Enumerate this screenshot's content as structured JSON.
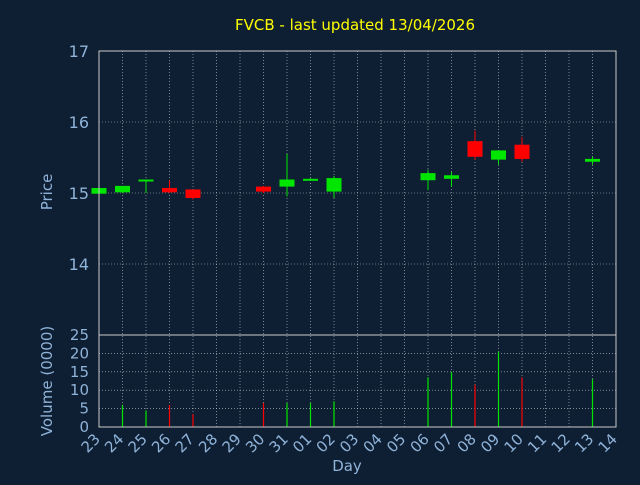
{
  "chart_data": {
    "type": "candlestick",
    "title": "FVCB - last updated 13/04/2026",
    "xlabel": "Day",
    "price_panel": {
      "ylabel": "Price",
      "ylim": [
        13.0,
        17.0
      ],
      "yticks": [
        "14",
        "15",
        "16",
        "17"
      ],
      "grid": true
    },
    "volume_panel": {
      "ylabel": "Volume (0000)",
      "ylim": [
        0,
        25
      ],
      "yticks": [
        "0",
        "5",
        "10",
        "15",
        "20",
        "25"
      ],
      "grid": true
    },
    "x_tick_labels": [
      "23",
      "24",
      "25",
      "26",
      "27",
      "28",
      "29",
      "30",
      "31",
      "01",
      "02",
      "03",
      "04",
      "05",
      "06",
      "07",
      "08",
      "09",
      "10",
      "11",
      "12",
      "13",
      "14"
    ],
    "candles": [
      {
        "day": "23",
        "open": 14.99,
        "high": 15.08,
        "low": 14.98,
        "close": 15.07
      },
      {
        "day": "24",
        "open": 15.01,
        "high": 15.1,
        "low": 15.0,
        "close": 15.1
      },
      {
        "day": "25",
        "open": 15.17,
        "high": 15.19,
        "low": 15.0,
        "close": 15.19
      },
      {
        "day": "26",
        "open": 15.07,
        "high": 15.18,
        "low": 15.0,
        "close": 15.01
      },
      {
        "day": "27",
        "open": 15.05,
        "high": 15.05,
        "low": 14.91,
        "close": 14.93
      },
      {
        "day": "30",
        "open": 15.09,
        "high": 15.1,
        "low": 15.0,
        "close": 15.02
      },
      {
        "day": "31",
        "open": 15.09,
        "high": 15.55,
        "low": 14.95,
        "close": 15.19
      },
      {
        "day": "01",
        "open": 15.18,
        "high": 15.21,
        "low": 15.17,
        "close": 15.2
      },
      {
        "day": "02",
        "open": 15.02,
        "high": 15.24,
        "low": 14.93,
        "close": 15.21
      },
      {
        "day": "06",
        "open": 15.18,
        "high": 15.33,
        "low": 15.04,
        "close": 15.28
      },
      {
        "day": "07",
        "open": 15.2,
        "high": 15.3,
        "low": 15.09,
        "close": 15.25
      },
      {
        "day": "08",
        "open": 15.73,
        "high": 15.88,
        "low": 15.47,
        "close": 15.51
      },
      {
        "day": "09",
        "open": 15.47,
        "high": 15.6,
        "low": 15.4,
        "close": 15.6
      },
      {
        "day": "10",
        "open": 15.68,
        "high": 15.79,
        "low": 15.44,
        "close": 15.48
      },
      {
        "day": "13",
        "open": 15.44,
        "high": 15.51,
        "low": 15.4,
        "close": 15.48
      }
    ],
    "volumes": [
      {
        "day": "23",
        "value": 0.3,
        "color": "green"
      },
      {
        "day": "24",
        "value": 6,
        "color": "green"
      },
      {
        "day": "25",
        "value": 4.5,
        "color": "green"
      },
      {
        "day": "26",
        "value": 6,
        "color": "red"
      },
      {
        "day": "27",
        "value": 3.5,
        "color": "red"
      },
      {
        "day": "30",
        "value": 6.5,
        "color": "red"
      },
      {
        "day": "31",
        "value": 6.5,
        "color": "green"
      },
      {
        "day": "01",
        "value": 6.5,
        "color": "green"
      },
      {
        "day": "02",
        "value": 7,
        "color": "green"
      },
      {
        "day": "06",
        "value": 13.5,
        "color": "green"
      },
      {
        "day": "07",
        "value": 15,
        "color": "green"
      },
      {
        "day": "08",
        "value": 11.5,
        "color": "red"
      },
      {
        "day": "09",
        "value": 20.5,
        "color": "green"
      },
      {
        "day": "10",
        "value": 13.5,
        "color": "red"
      },
      {
        "day": "13",
        "value": 13,
        "color": "green"
      }
    ],
    "colors": {
      "background": "#0f1f33",
      "up": "#00e600",
      "down": "#ff0000",
      "title": "#ffff00",
      "axis_text": "#8fb3d9",
      "grid": "#ffffff",
      "frame": "#c8c8c8"
    }
  }
}
